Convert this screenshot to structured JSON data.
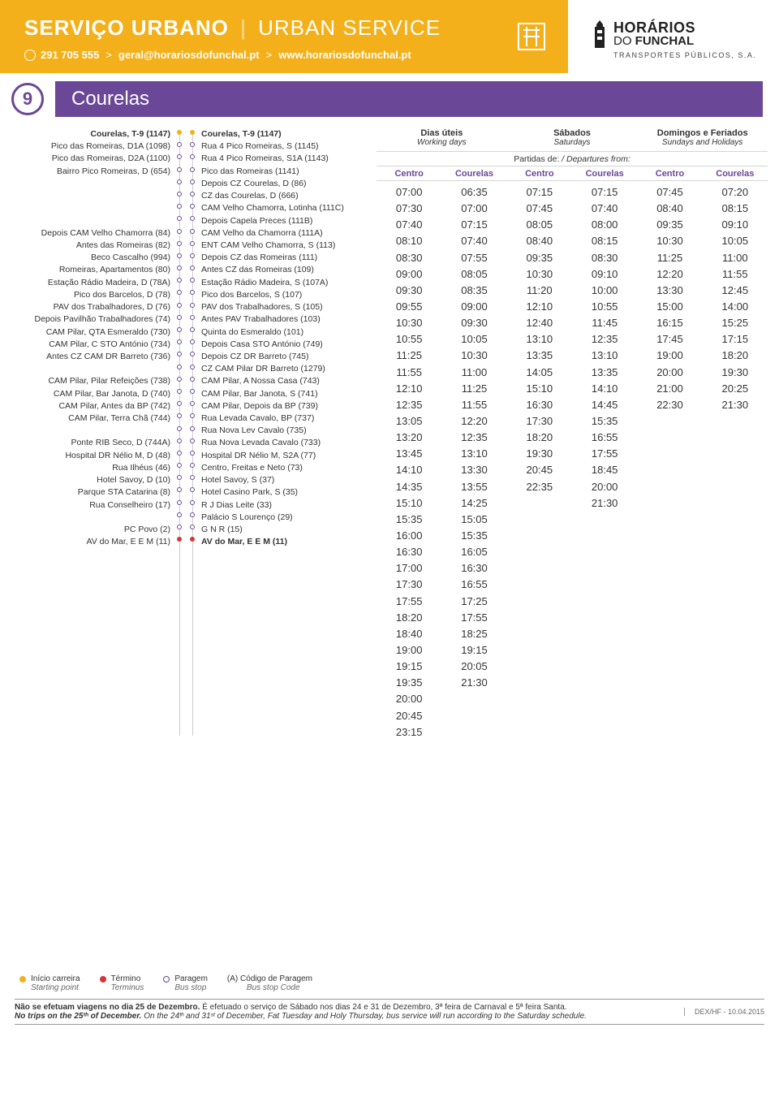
{
  "header": {
    "title_bold": "SERVIÇO URBANO",
    "title_light": "URBAN SERVICE",
    "phone": "291 705 555",
    "email": "geral@horariosdofunchal.pt",
    "web": "www.horariosdofunchal.pt",
    "brand_line1": "HORÁRIOS",
    "brand_line2_a": "DO ",
    "brand_line2_b": "FUNCHAL",
    "brand_sub": "TRANSPORTES PÚBLICOS, S.A."
  },
  "route": {
    "number": "9",
    "name": "Courelas",
    "route_color": "#6a4797"
  },
  "stops_left": [
    "Courelas, T-9 (1147)",
    "Pico das Romeiras, D1A (1098)",
    "Pico das Romeiras, D2A (1100)",
    "Bairro Pico Romeiras, D (654)",
    "",
    "",
    "",
    "",
    "Depois CAM Velho Chamorra (84)",
    "Antes das Romeiras (82)",
    "Beco Cascalho (994)",
    "Romeiras, Apartamentos (80)",
    "Estação Rádio Madeira, D (78A)",
    "Pico dos Barcelos, D (78)",
    "PAV dos Trabalhadores, D (76)",
    "Depois Pavilhão Trabalhadores (74)",
    "CAM Pilar, QTA Esmeraldo (730)",
    "CAM Pilar, C STO António (734)",
    "Antes CZ CAM DR Barreto (736)",
    "",
    "CAM Pilar, Pilar Refeições (738)",
    "CAM Pilar, Bar Janota, D (740)",
    "CAM Pilar, Antes da BP (742)",
    "CAM Pilar, Terra Chã (744)",
    "",
    "Ponte RIB Seco, D (744A)",
    "Hospital DR Nélio M, D (48)",
    "Rua Ilhéus (46)",
    "Hotel Savoy, D (10)",
    "Parque STA Catarina (8)",
    "Rua Conselheiro (17)",
    "",
    "PC Povo (2)",
    "AV do Mar, E E M (11)"
  ],
  "stops_right": [
    "Courelas, T-9 (1147)",
    "Rua 4 Pico Romeiras, S (1145)",
    "Rua 4 Pico Romeiras, S1A (1143)",
    "Pico das Romeiras (1141)",
    "Depois CZ Courelas, D (86)",
    "CZ das Courelas, D (666)",
    "CAM Velho Chamorra, Lotinha (111C)",
    "Depois Capela Preces (111B)",
    "CAM Velho da Chamorra (111A)",
    "ENT CAM Velho Chamorra, S (113)",
    "Depois CZ das Romeiras (111)",
    "Antes CZ das Romeiras (109)",
    "Estação Rádio Madeira, S (107A)",
    "Pico dos Barcelos, S (107)",
    "PAV dos Trabalhadores, S (105)",
    "Antes PAV Trabalhadores (103)",
    "Quinta do Esmeraldo (101)",
    "Depois Casa STO António (749)",
    "Depois CZ DR Barreto (745)",
    "CZ CAM Pilar DR Barreto (1279)",
    "CAM Pilar, A Nossa Casa (743)",
    "CAM Pilar, Bar Janota, S (741)",
    "CAM Pilar, Depois da BP (739)",
    "Rua Levada Cavalo, BP (737)",
    "Rua Nova Lev Cavalo (735)",
    "Rua Nova Levada Cavalo (733)",
    "Hospital DR Nélio M, S2A (77)",
    "Centro, Freitas e Neto (73)",
    "Hotel Savoy, S (37)",
    "Hotel Casino Park, S (35)",
    "R J Dias Leite (33)",
    "Palácio S Lourenço (29)",
    "G N R (15)",
    "AV do Mar, E E M (11)"
  ],
  "timetable": {
    "groups": [
      {
        "pt": "Dias úteis",
        "en": "Working days"
      },
      {
        "pt": "Sábados",
        "en": "Saturdays"
      },
      {
        "pt": "Domingos e Feriados",
        "en": "Sundays and Holidays"
      }
    ],
    "depart_pt": "Partidas de:",
    "depart_en": "/ Departures from:",
    "sub_headers": [
      "Centro",
      "Courelas",
      "Centro",
      "Courelas",
      "Centro",
      "Courelas"
    ],
    "columns": [
      [
        "07:00",
        "07:30",
        "07:40",
        "08:10",
        "08:30",
        "09:00",
        "09:30",
        "09:55",
        "10:30",
        "10:55",
        "11:25",
        "11:55",
        "12:10",
        "12:35",
        "13:05",
        "13:20",
        "13:45",
        "14:10",
        "14:35",
        "15:10",
        "15:35",
        "16:00",
        "16:30",
        "17:00",
        "17:30",
        "17:55",
        "18:20",
        "18:40",
        "19:00",
        "19:15",
        "19:35",
        "20:00",
        "20:45",
        "23:15"
      ],
      [
        "06:35",
        "07:00",
        "07:15",
        "07:40",
        "07:55",
        "08:05",
        "08:35",
        "09:00",
        "09:30",
        "10:05",
        "10:30",
        "11:00",
        "11:25",
        "11:55",
        "12:20",
        "12:35",
        "13:10",
        "13:30",
        "13:55",
        "14:25",
        "15:05",
        "15:35",
        "16:05",
        "16:30",
        "16:55",
        "17:25",
        "17:55",
        "18:25",
        "19:15",
        "20:05",
        "21:30"
      ],
      [
        "07:15",
        "07:45",
        "08:05",
        "08:40",
        "09:35",
        "10:30",
        "11:20",
        "12:10",
        "12:40",
        "13:10",
        "13:35",
        "14:05",
        "15:10",
        "16:30",
        "17:30",
        "18:20",
        "19:30",
        "20:45",
        "22:35"
      ],
      [
        "07:15",
        "07:40",
        "08:00",
        "08:15",
        "08:30",
        "09:10",
        "10:00",
        "10:55",
        "11:45",
        "12:35",
        "13:10",
        "13:35",
        "14:10",
        "14:45",
        "15:35",
        "16:55",
        "17:55",
        "18:45",
        "20:00",
        "21:30"
      ],
      [
        "07:45",
        "08:40",
        "09:35",
        "10:30",
        "11:25",
        "12:20",
        "13:30",
        "15:00",
        "16:15",
        "17:45",
        "19:00",
        "20:00",
        "21:00",
        "22:30"
      ],
      [
        "07:20",
        "08:15",
        "09:10",
        "10:05",
        "11:00",
        "11:55",
        "12:45",
        "14:00",
        "15:25",
        "17:15",
        "18:20",
        "19:30",
        "20:25",
        "21:30"
      ]
    ]
  },
  "legend": {
    "start_pt": "Início carreira",
    "start_en": "Starting point",
    "end_pt": "Término",
    "end_en": "Terminus",
    "stop_pt": "Paragem",
    "stop_en": "Bus stop",
    "code_pt": "(A)  Código de Paragem",
    "code_en": "Bus stop Code"
  },
  "footer": {
    "pt_bold": "Não se efetuam viagens no dia 25 de Dezembro.",
    "pt_rest": " É efetuado o serviço de Sábado nos dias 24 e 31 de Dezembro, 3ª feira de Carnaval e 5ª feira Santa.",
    "en_bold": "No trips on the 25ᵗʰ of December.",
    "en_rest": " On the 24ᵗʰ and 31ˢᵗ of December, Fat Tuesday and Holy Thursday, bus service will run according to the Saturday schedule.",
    "ref": "DEX/HF - 10.04.2015"
  }
}
